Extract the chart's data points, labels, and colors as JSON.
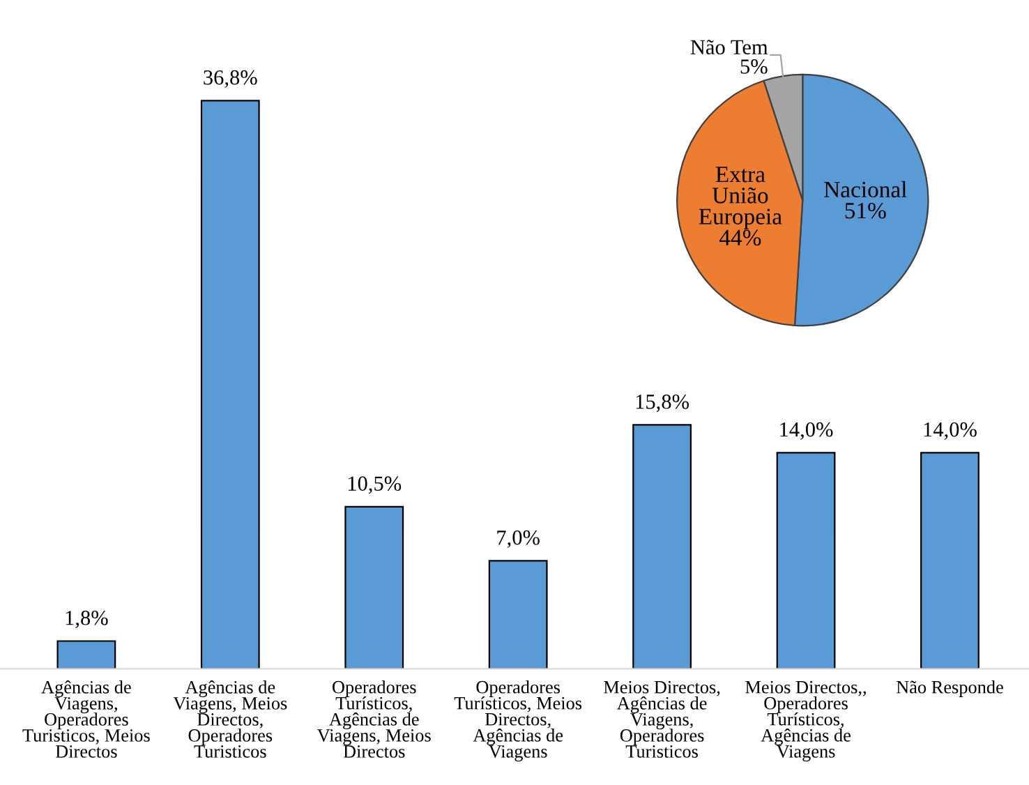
{
  "chart_data": [
    {
      "type": "bar",
      "categories": [
        "Agências de\nViagens,\nOperadores\nTuristicos, Meios\nDirectos",
        "Agências de\nViagens, Meios\nDirectos,\nOperadores\nTuristicos",
        "Operadores\nTurísticos,\nAgências de\nViagens, Meios\nDirectos",
        "Operadores\nTurísticos, Meios\nDirectos,\nAgências de\nViagens",
        "Meios Directos,\nAgências de\nViagens,\nOperadores\nTuristicos",
        "Meios Directos,,\nOperadores\nTurísticos,\nAgências de\nViagens",
        "Não Responde"
      ],
      "values": [
        1.8,
        36.8,
        10.5,
        7.0,
        15.8,
        14.0,
        14.0
      ],
      "value_labels": [
        "1,8%",
        "36,8%",
        "10,5%",
        "7,0%",
        "15,8%",
        "14,0%",
        "14,0%"
      ],
      "color": "#5b9bd5",
      "grid": false,
      "legend": false
    },
    {
      "type": "pie",
      "categories": [
        "Nacional",
        "Extra\nUnião\nEuropeia",
        "Não Tem"
      ],
      "values": [
        51,
        44,
        5
      ],
      "value_labels": [
        "51%",
        "44%",
        "5%"
      ],
      "colors": [
        "#5b9bd5",
        "#ed7d31",
        "#a5a5a5"
      ],
      "legend": false
    }
  ]
}
